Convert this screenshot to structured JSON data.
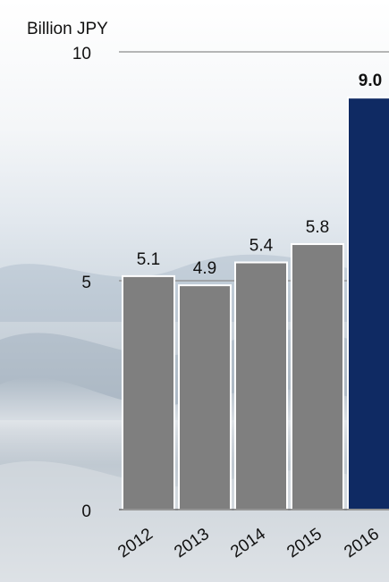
{
  "chart_data": {
    "type": "bar",
    "title": "",
    "xlabel": "",
    "ylabel": "Billion JPY",
    "ylim": [
      0,
      10
    ],
    "yticks": [
      0,
      5,
      10
    ],
    "categories": [
      "2012",
      "2013",
      "2014",
      "2015",
      "2016"
    ],
    "values": [
      5.1,
      4.9,
      5.4,
      5.8,
      9.0
    ],
    "data_labels": [
      "5.1",
      "4.9",
      "5.4",
      "5.8",
      "9.0"
    ],
    "highlight_index": 4,
    "grid": true,
    "legend": "none",
    "colors": {
      "bar": "#7f7f7f",
      "highlight_bar": "#0f2a63",
      "grid": "#8c8c8c"
    }
  }
}
